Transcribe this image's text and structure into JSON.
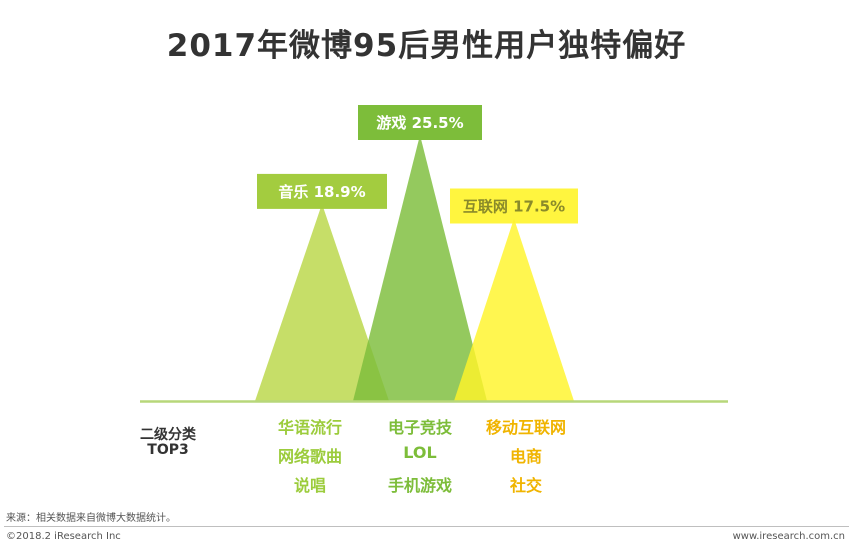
{
  "chart_data": {
    "type": "area",
    "title": "2017年微博95后男性用户独特偏好",
    "categories": [
      "音乐",
      "游戏",
      "互联网"
    ],
    "values": [
      18.9,
      25.5,
      17.5
    ],
    "value_labels": [
      "音乐 18.9%",
      "游戏 25.5%",
      "互联网 17.5%"
    ],
    "series_colors": [
      "#bcd84e",
      "#7dbd3a",
      "#fff42a"
    ],
    "label_box_colors": [
      "#a3cc3f",
      "#7dbd3a",
      "#fff42a"
    ],
    "label_text_colors": [
      "#ffffff",
      "#ffffff",
      "#8a8a2a"
    ],
    "subcategory_colors": [
      "#9ccc3c",
      "#7dbd3a",
      "#f0b400"
    ],
    "row_label": [
      "二级分类",
      "TOP3"
    ],
    "subcategories": [
      [
        "华语流行",
        "网络歌曲",
        "说唱"
      ],
      [
        "电子竞技",
        "LOL",
        "手机游戏"
      ],
      [
        "移动互联网",
        "电商",
        "社交"
      ]
    ],
    "ylim": [
      0,
      30
    ]
  },
  "footer": {
    "source": "来源：相关数据来自微博大数据统计。",
    "copyright": "©2018.2 iResearch Inc",
    "url": "www.iresearch.com.cn"
  }
}
